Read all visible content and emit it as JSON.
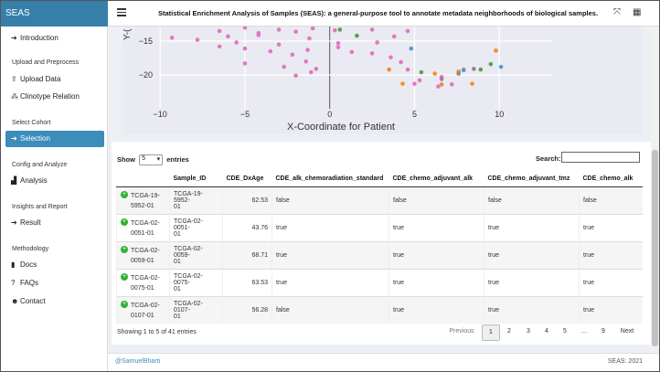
{
  "brand": "SEAS",
  "header": {
    "title": "Statistical Enrichment Analysis of Samples (SEAS): a general-purpose tool to annotate metadata neighborhoods of biological samples."
  },
  "sidebar": {
    "introduction": "Introduction",
    "section_upload": "Upload and Preprocess",
    "upload_data": "Upload Data",
    "clinotype_relation": "Clinotype Relation",
    "section_cohort": "Select Cohort",
    "selection": "Selection",
    "section_config": "Config and Analyze",
    "analysis": "Analysis",
    "section_insights": "Insights and Report",
    "result": "Result",
    "section_method": "Methodology",
    "docs": "Docs",
    "faqs": "FAQs",
    "contact": "Contact"
  },
  "plot": {
    "xlabel": "X-Coordinate for Patient",
    "ylabel_fragment": "Y-(",
    "xticks": [
      "−10",
      "−5",
      "0",
      "5",
      "10"
    ],
    "yticks": [
      "−15",
      "−20"
    ]
  },
  "chart_data": {
    "type": "scatter",
    "xlabel": "X-Coordinate for Patient",
    "xlim": [
      -11,
      12
    ],
    "ylim": [
      -23,
      -12.5
    ],
    "series": [
      {
        "color": "#e377c2",
        "points": [
          [
            -6.5,
            -13.5
          ],
          [
            -5,
            -13
          ],
          [
            -4.2,
            -13.8
          ],
          [
            -3,
            -13.3
          ],
          [
            -2,
            -13.6
          ],
          [
            -1,
            -13.1
          ],
          [
            0.3,
            -13.4
          ],
          [
            -9.3,
            -14.5
          ],
          [
            -7.8,
            -14.8
          ],
          [
            -6,
            -14.3
          ],
          [
            -5.5,
            -15.2
          ],
          [
            -4.2,
            -14.1
          ],
          [
            -3,
            -15.5
          ],
          [
            -1.2,
            -14.6
          ],
          [
            0.5,
            -15.3
          ],
          [
            -6.5,
            -15.8
          ],
          [
            -5,
            -16.1
          ],
          [
            -3.5,
            -16.5
          ],
          [
            -2.2,
            -17
          ],
          [
            -1.3,
            -16.3
          ],
          [
            0.5,
            -15.9
          ],
          [
            -5,
            -18.3
          ],
          [
            -2.7,
            -18.8
          ],
          [
            -1.4,
            -18
          ],
          [
            -0.8,
            -19.1
          ],
          [
            -1.1,
            -19.6
          ],
          [
            -2,
            -20.1
          ],
          [
            1.3,
            -16.6
          ],
          [
            2.5,
            -16.8
          ],
          [
            2.8,
            -15.2
          ],
          [
            3.6,
            -17.4
          ],
          [
            4.2,
            -18.1
          ],
          [
            4.6,
            -19.2
          ],
          [
            5.3,
            -20.8
          ],
          [
            6.4,
            -21.7
          ],
          [
            7.2,
            -21.4
          ],
          [
            5,
            -21.3
          ],
          [
            6.6,
            -20.3
          ],
          [
            3.8,
            -14.3
          ],
          [
            2.5,
            -13.3
          ],
          [
            4.6,
            -13.5
          ]
        ]
      },
      {
        "color": "#f28e2b",
        "points": [
          [
            3.5,
            -19.2
          ],
          [
            4.3,
            -21.3
          ],
          [
            6.6,
            -21.4
          ],
          [
            7.6,
            -19.5
          ],
          [
            7.9,
            -19.2
          ],
          [
            8.4,
            -21.3
          ],
          [
            6.2,
            -19.8
          ],
          [
            9.8,
            -16.4
          ]
        ]
      },
      {
        "color": "#59a14f",
        "points": [
          [
            0.6,
            -13.3
          ],
          [
            1.6,
            -14.2
          ],
          [
            8.9,
            -19.2
          ],
          [
            9.5,
            -18.4
          ],
          [
            5.4,
            -19.6
          ]
        ]
      },
      {
        "color": "#8a8a8a",
        "points": [
          [
            7.6,
            -19.8
          ],
          [
            8.5,
            -19.1
          ]
        ]
      },
      {
        "color": "#4e9fdc",
        "points": [
          [
            4.8,
            -16.1
          ],
          [
            10.1,
            -18.8
          ],
          [
            7.9,
            -19.3
          ]
        ]
      },
      {
        "color": "#b07aa1",
        "points": [
          [
            6.6,
            -20.6
          ]
        ]
      }
    ]
  },
  "table": {
    "show_label": "Show",
    "page_size": "5",
    "entries_label": "entries",
    "search_label": "Search:",
    "search_value": "",
    "columns": [
      "",
      "Sample_ID",
      "CDE_DxAge",
      "CDE_alk_chemoradiation_standard",
      "CDE_chemo_adjuvant_alk",
      "CDE_chemo_adjuvant_tmz",
      "CDE_chemo_alk"
    ],
    "rows": [
      {
        "id1": "TCGA-19-",
        "id2": "5952-01",
        "sample1": "TCGA-19-5952-",
        "sample2": "01",
        "age": "62.53",
        "c1": "false",
        "c2": "false",
        "c3": "false",
        "c4": "false"
      },
      {
        "id1": "TCGA-02-",
        "id2": "0051-01",
        "sample1": "TCGA-02-0051-",
        "sample2": "01",
        "age": "43.76",
        "c1": "true",
        "c2": "true",
        "c3": "true",
        "c4": "true"
      },
      {
        "id1": "TCGA-02-",
        "id2": "0059-01",
        "sample1": "TCGA-02-0059-",
        "sample2": "01",
        "age": "68.71",
        "c1": "true",
        "c2": "true",
        "c3": "true",
        "c4": "true"
      },
      {
        "id1": "TCGA-02-",
        "id2": "0075-01",
        "sample1": "TCGA-02-0075-",
        "sample2": "01",
        "age": "63.53",
        "c1": "true",
        "c2": "true",
        "c3": "true",
        "c4": "true"
      },
      {
        "id1": "TCGA-02-",
        "id2": "0107-01",
        "sample1": "TCGA-02-0107-",
        "sample2": "01",
        "age": "56.28",
        "c1": "false",
        "c2": "true",
        "c3": "true",
        "c4": "true"
      }
    ],
    "info": "Showing 1 to 5 of 41 entries",
    "pagination": {
      "previous": "Previous",
      "pages": [
        "1",
        "2",
        "3",
        "4",
        "5",
        "…",
        "9"
      ],
      "next": "Next"
    }
  },
  "footer": {
    "left": "@SamuelBharti",
    "right": "SEAS: 2021"
  }
}
